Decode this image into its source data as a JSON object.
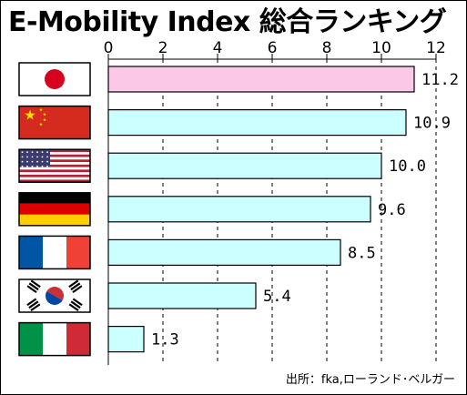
{
  "title": "E-Mobility Index 総合ランキング",
  "source": "出所：fka,ローランド･ベルガー",
  "colors": {
    "highlight": "#fbc8e8",
    "bar": "#ccffff",
    "border": "#000000",
    "grid": "#000000"
  },
  "flags": [
    {
      "name": "japan-flag-icon"
    },
    {
      "name": "china-flag-icon"
    },
    {
      "name": "usa-flag-icon"
    },
    {
      "name": "germany-flag-icon"
    },
    {
      "name": "france-flag-icon"
    },
    {
      "name": "south-korea-flag-icon"
    },
    {
      "name": "italy-flag-icon"
    }
  ],
  "chart_data": {
    "type": "bar",
    "orientation": "horizontal",
    "title": "E-Mobility Index 総合ランキング",
    "xlim": [
      0,
      12
    ],
    "ticks": [
      0,
      2,
      4,
      6,
      8,
      10,
      12
    ],
    "grid": true,
    "values": [
      11.2,
      10.9,
      10.0,
      9.6,
      8.5,
      5.4,
      1.3
    ],
    "labels": [
      "11.2",
      "10.9",
      "10.0",
      "9.6",
      "8.5",
      "5.4",
      "1.3"
    ]
  }
}
